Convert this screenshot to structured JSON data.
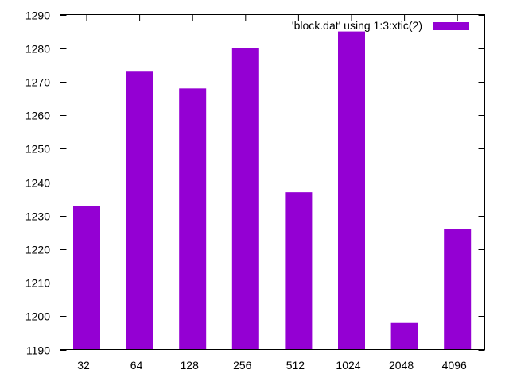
{
  "chart_data": {
    "type": "bar",
    "categories": [
      "32",
      "64",
      "128",
      "256",
      "512",
      "1024",
      "2048",
      "4096"
    ],
    "series": [
      {
        "name": "'block.dat' using 1:3:xtic(2)",
        "color": "#9400d3",
        "values": [
          1233,
          1273,
          1268,
          1280,
          1237,
          1285,
          1198,
          1226
        ]
      }
    ],
    "ylim": [
      1190,
      1290
    ],
    "yticks": [
      "1190",
      "1200",
      "1210",
      "1220",
      "1230",
      "1240",
      "1250",
      "1260",
      "1270",
      "1280",
      "1290"
    ],
    "title": "",
    "xlabel": "",
    "ylabel": "",
    "grid": false,
    "legend": "top-right"
  }
}
